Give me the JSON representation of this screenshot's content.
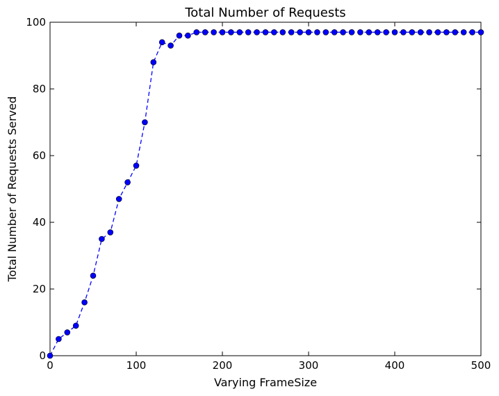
{
  "chart_data": {
    "type": "line",
    "title": "Total Number of Requests",
    "xlabel": "Varying FrameSize",
    "ylabel": "Total Number of Requests Served",
    "xlim": [
      0,
      500
    ],
    "ylim": [
      0,
      100
    ],
    "xticks": [
      0,
      100,
      200,
      300,
      400,
      500
    ],
    "yticks": [
      0,
      20,
      40,
      60,
      80,
      100
    ],
    "grid": false,
    "line_style": "dashed",
    "marker": "circle",
    "color": "#0000ff",
    "series": [
      {
        "x": [
          0,
          10,
          20,
          30,
          40,
          50,
          60,
          70,
          80,
          90,
          100,
          110,
          120,
          130,
          140,
          150,
          160,
          170,
          180,
          190,
          200,
          210,
          220,
          230,
          240,
          250,
          260,
          270,
          280,
          290,
          300,
          310,
          320,
          330,
          340,
          350,
          360,
          370,
          380,
          390,
          400,
          410,
          420,
          430,
          440,
          450,
          460,
          470,
          480,
          490,
          500
        ],
        "y": [
          0,
          5,
          7,
          9,
          16,
          24,
          35,
          37,
          47,
          52,
          57,
          70,
          88,
          94,
          93,
          96,
          96,
          97,
          97,
          97,
          97,
          97,
          97,
          97,
          97,
          97,
          97,
          97,
          97,
          97,
          97,
          97,
          97,
          97,
          97,
          97,
          97,
          97,
          97,
          97,
          97,
          97,
          97,
          97,
          97,
          97,
          97,
          97,
          97,
          97,
          97
        ]
      }
    ]
  }
}
